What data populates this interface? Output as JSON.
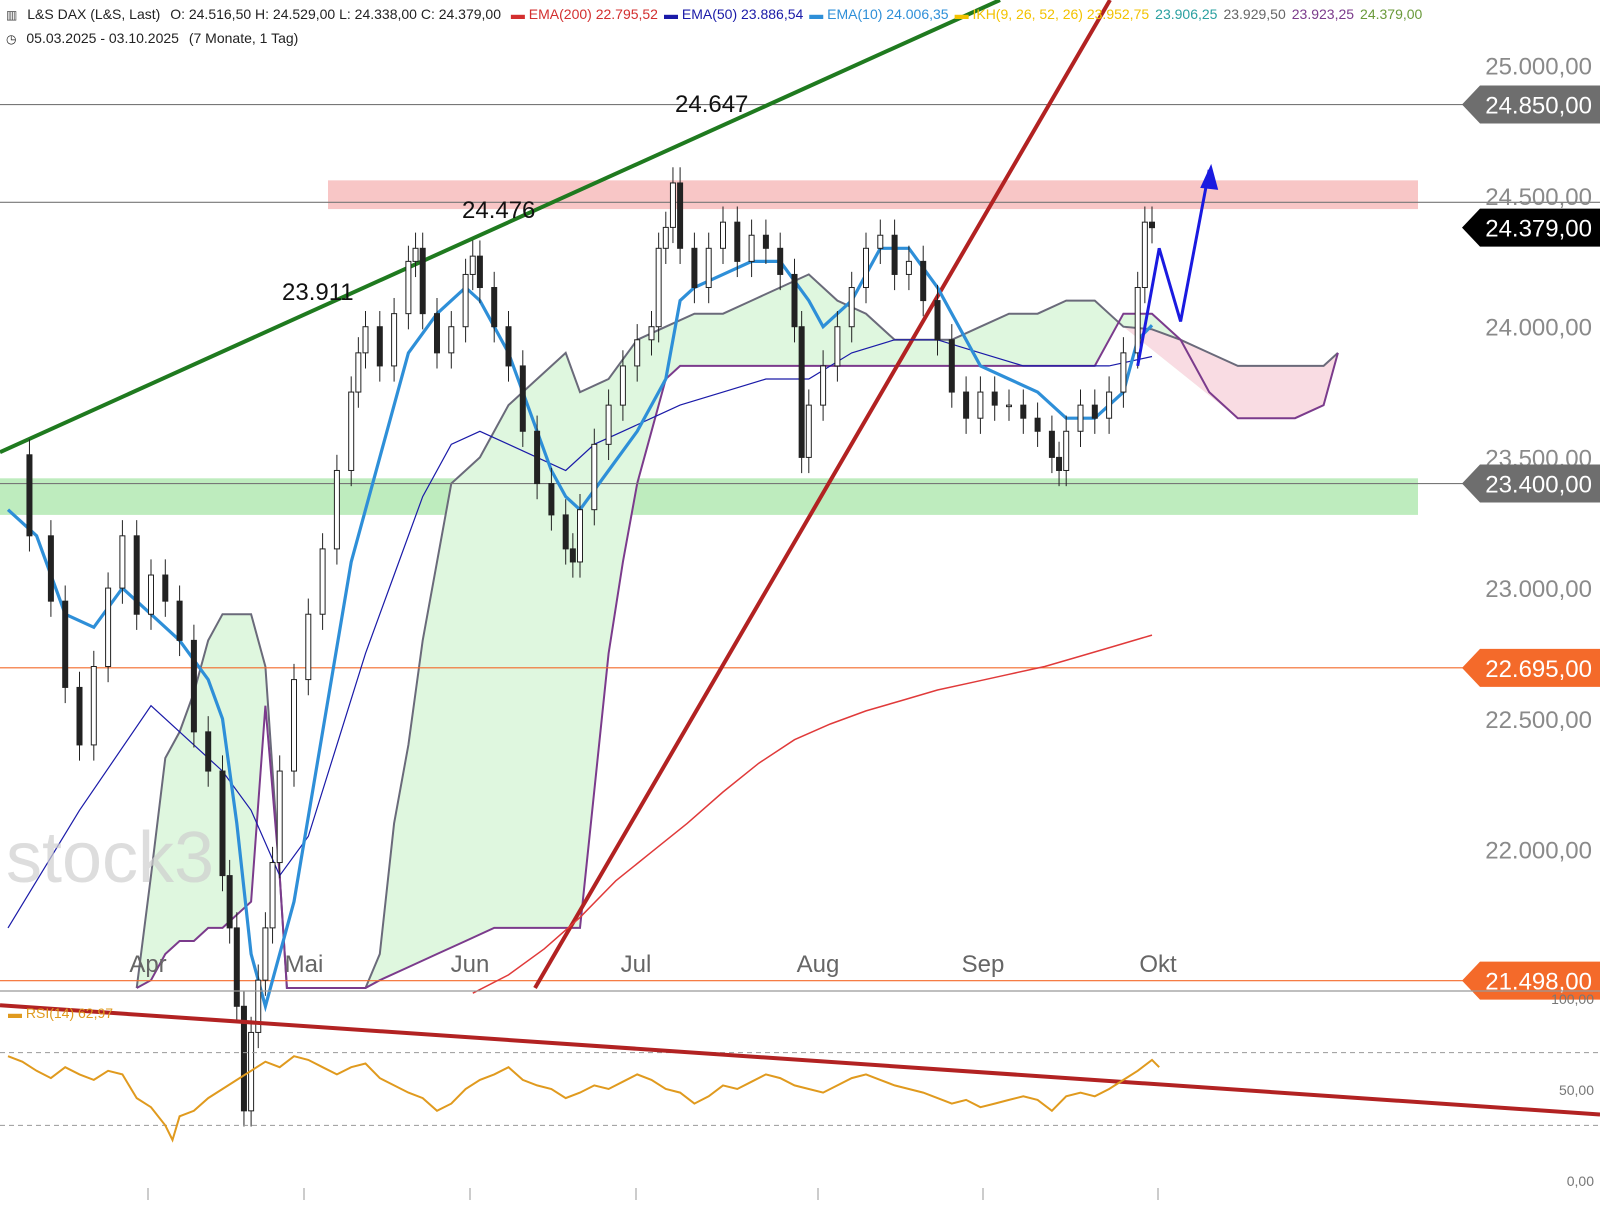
{
  "header": {
    "instrument": "L&S DAX (L&S, Last)",
    "ohlc": "O: 24.516,50  H: 24.529,00  L: 24.338,00  C: 24.379,00",
    "range": "05.03.2025 - 03.10.2025",
    "range_note": "(7 Monate, 1 Tag)",
    "indicators": [
      {
        "label": "EMA(200)",
        "value": "22.795,52",
        "color": "#d32f2f"
      },
      {
        "label": "EMA(50)",
        "value": "23.886,54",
        "color": "#1a1aa8"
      },
      {
        "label": "EMA(10)",
        "value": "24.006,35",
        "color": "#2e8fd8"
      },
      {
        "label": "IKH(9, 26, 52, 26)",
        "value": "23.952,75",
        "color": "#f2c200"
      }
    ],
    "ikh_values": [
      {
        "value": "23.906,25",
        "color": "#2aa0a0"
      },
      {
        "value": "23.929,50",
        "color": "#666666"
      },
      {
        "value": "23.923,25",
        "color": "#7b3b8c"
      },
      {
        "value": "24.379,00",
        "color": "#6a9a3a"
      }
    ]
  },
  "watermark": "stock3",
  "annotations": [
    {
      "text": "24.647"
    },
    {
      "text": "24.476"
    },
    {
      "text": "23.911"
    }
  ],
  "price_axis": {
    "ticks": [
      "25.000,00",
      "24.500,00",
      "24.000,00",
      "23.500,00",
      "23.000,00",
      "22.500,00",
      "22.000,00"
    ],
    "tick_values": [
      25000,
      24500,
      24000,
      23500,
      23000,
      22500,
      22000
    ]
  },
  "price_badges": [
    {
      "text": "24.850,00",
      "value": 24850,
      "bg": "#6e6e6e"
    },
    {
      "text": "24.379,00",
      "value": 24379,
      "bg": "#000000"
    },
    {
      "text": "23.400,00",
      "value": 23400,
      "bg": "#6e6e6e"
    },
    {
      "text": "22.695,00",
      "value": 22695,
      "bg": "#f46a2a"
    },
    {
      "text": "21.498,00",
      "value": 21498,
      "bg": "#f46a2a"
    }
  ],
  "month_labels": [
    "Apr",
    "Mai",
    "Jun",
    "Jul",
    "Aug",
    "Sep",
    "Okt"
  ],
  "rsi": {
    "label": "RSI(14)",
    "value_text": "62,97",
    "current": 62.97,
    "ticks": [
      "100,00",
      "50,00",
      "0,00"
    ],
    "tick_values": [
      100,
      50,
      0
    ],
    "color": "#e09a1e"
  },
  "colors": {
    "support_zone": "#a8e6a8",
    "resistance_zone": "#f5b3b3",
    "cloud_bull": "#dff7df",
    "cloud_bear": "#f9dce3",
    "trend_green": "#1f7a1f",
    "trend_red": "#b22222"
  },
  "chart_data": {
    "type": "candlestick",
    "title": "L&S DAX (L&S, Last)",
    "ylim": [
      21470,
      25250
    ],
    "ohlc_last": {
      "open": 24516.5,
      "high": 24529,
      "low": 24338,
      "close": 24379
    },
    "horizontal_levels": [
      24850,
      24476,
      23400,
      22695,
      21498
    ],
    "resistance_zone": [
      24450,
      24560
    ],
    "support_zone": [
      23280,
      23420
    ],
    "price": [
      [
        0,
        23510
      ],
      [
        3,
        23200
      ],
      [
        6,
        22950
      ],
      [
        8,
        22620
      ],
      [
        10,
        22400
      ],
      [
        12,
        22700
      ],
      [
        14,
        23000
      ],
      [
        16,
        23200
      ],
      [
        18,
        22900
      ],
      [
        20,
        23050
      ],
      [
        22,
        22950
      ],
      [
        24,
        22800
      ],
      [
        26,
        22450
      ],
      [
        28,
        22300
      ],
      [
        30,
        21900
      ],
      [
        31,
        21700
      ],
      [
        32,
        21400
      ],
      [
        33,
        21000
      ],
      [
        34,
        21300
      ],
      [
        35,
        21500
      ],
      [
        36,
        21700
      ],
      [
        37,
        21950
      ],
      [
        38,
        22300
      ],
      [
        40,
        22650
      ],
      [
        42,
        22900
      ],
      [
        44,
        23150
      ],
      [
        46,
        23450
      ],
      [
        48,
        23750
      ],
      [
        49,
        23900
      ],
      [
        50,
        24000
      ],
      [
        52,
        23850
      ],
      [
        54,
        24050
      ],
      [
        56,
        24250
      ],
      [
        57,
        24300
      ],
      [
        58,
        24050
      ],
      [
        60,
        23900
      ],
      [
        62,
        24000
      ],
      [
        64,
        24200
      ],
      [
        65,
        24270
      ],
      [
        66,
        24150
      ],
      [
        68,
        24000
      ],
      [
        70,
        23850
      ],
      [
        72,
        23600
      ],
      [
        74,
        23400
      ],
      [
        76,
        23280
      ],
      [
        78,
        23150
      ],
      [
        79,
        23100
      ],
      [
        80,
        23300
      ],
      [
        82,
        23550
      ],
      [
        84,
        23700
      ],
      [
        86,
        23850
      ],
      [
        88,
        23950
      ],
      [
        90,
        24000
      ],
      [
        91,
        24300
      ],
      [
        92,
        24380
      ],
      [
        93,
        24550
      ],
      [
        94,
        24300
      ],
      [
        96,
        24150
      ],
      [
        98,
        24300
      ],
      [
        100,
        24400
      ],
      [
        102,
        24250
      ],
      [
        104,
        24350
      ],
      [
        106,
        24300
      ],
      [
        108,
        24200
      ],
      [
        110,
        24000
      ],
      [
        111,
        23500
      ],
      [
        112,
        23700
      ],
      [
        114,
        23850
      ],
      [
        116,
        24000
      ],
      [
        118,
        24150
      ],
      [
        120,
        24300
      ],
      [
        122,
        24350
      ],
      [
        124,
        24200
      ],
      [
        126,
        24250
      ],
      [
        128,
        24100
      ],
      [
        130,
        23950
      ],
      [
        132,
        23750
      ],
      [
        134,
        23650
      ],
      [
        136,
        23750
      ],
      [
        138,
        23700
      ],
      [
        140,
        23700
      ],
      [
        142,
        23650
      ],
      [
        144,
        23600
      ],
      [
        146,
        23500
      ],
      [
        147,
        23450
      ],
      [
        148,
        23600
      ],
      [
        150,
        23700
      ],
      [
        152,
        23650
      ],
      [
        154,
        23750
      ],
      [
        156,
        23900
      ],
      [
        158,
        24150
      ],
      [
        159,
        24400
      ],
      [
        160,
        24379
      ]
    ],
    "ema10": [
      [
        0,
        23300
      ],
      [
        4,
        23200
      ],
      [
        8,
        22900
      ],
      [
        12,
        22850
      ],
      [
        16,
        23000
      ],
      [
        20,
        22900
      ],
      [
        24,
        22800
      ],
      [
        28,
        22650
      ],
      [
        30,
        22500
      ],
      [
        32,
        22100
      ],
      [
        34,
        21600
      ],
      [
        36,
        21400
      ],
      [
        40,
        21800
      ],
      [
        44,
        22450
      ],
      [
        48,
        23100
      ],
      [
        52,
        23500
      ],
      [
        56,
        23900
      ],
      [
        60,
        24050
      ],
      [
        62,
        24100
      ],
      [
        64,
        24150
      ],
      [
        66,
        24100
      ],
      [
        68,
        24000
      ],
      [
        70,
        23900
      ],
      [
        72,
        23750
      ],
      [
        74,
        23600
      ],
      [
        76,
        23450
      ],
      [
        78,
        23350
      ],
      [
        80,
        23300
      ],
      [
        84,
        23450
      ],
      [
        88,
        23600
      ],
      [
        92,
        23800
      ],
      [
        94,
        24100
      ],
      [
        96,
        24150
      ],
      [
        100,
        24200
      ],
      [
        104,
        24250
      ],
      [
        108,
        24250
      ],
      [
        112,
        24100
      ],
      [
        114,
        24000
      ],
      [
        118,
        24100
      ],
      [
        122,
        24300
      ],
      [
        126,
        24300
      ],
      [
        130,
        24150
      ],
      [
        132,
        24050
      ],
      [
        134,
        23950
      ],
      [
        136,
        23850
      ],
      [
        140,
        23800
      ],
      [
        144,
        23750
      ],
      [
        148,
        23650
      ],
      [
        152,
        23650
      ],
      [
        156,
        23750
      ],
      [
        158,
        23950
      ],
      [
        160,
        24006
      ]
    ],
    "ema50": [
      [
        0,
        21700
      ],
      [
        10,
        22150
      ],
      [
        20,
        22550
      ],
      [
        30,
        22300
      ],
      [
        34,
        22150
      ],
      [
        38,
        21900
      ],
      [
        42,
        22050
      ],
      [
        46,
        22400
      ],
      [
        50,
        22750
      ],
      [
        54,
        23050
      ],
      [
        58,
        23350
      ],
      [
        62,
        23550
      ],
      [
        66,
        23600
      ],
      [
        70,
        23550
      ],
      [
        74,
        23500
      ],
      [
        78,
        23450
      ],
      [
        82,
        23550
      ],
      [
        86,
        23600
      ],
      [
        90,
        23650
      ],
      [
        94,
        23700
      ],
      [
        100,
        23750
      ],
      [
        106,
        23800
      ],
      [
        112,
        23800
      ],
      [
        118,
        23900
      ],
      [
        124,
        23950
      ],
      [
        130,
        23950
      ],
      [
        136,
        23900
      ],
      [
        142,
        23850
      ],
      [
        148,
        23850
      ],
      [
        154,
        23850
      ],
      [
        160,
        23886
      ]
    ],
    "ema200": [
      [
        65,
        21450
      ],
      [
        70,
        21520
      ],
      [
        75,
        21620
      ],
      [
        80,
        21740
      ],
      [
        85,
        21880
      ],
      [
        90,
        21990
      ],
      [
        95,
        22100
      ],
      [
        100,
        22220
      ],
      [
        105,
        22330
      ],
      [
        110,
        22420
      ],
      [
        115,
        22480
      ],
      [
        120,
        22530
      ],
      [
        125,
        22570
      ],
      [
        130,
        22610
      ],
      [
        135,
        22640
      ],
      [
        140,
        22670
      ],
      [
        145,
        22700
      ],
      [
        150,
        22740
      ],
      [
        155,
        22780
      ],
      [
        160,
        22820
      ]
    ],
    "cloud_upper": [
      [
        18,
        21470
      ],
      [
        20,
        21900
      ],
      [
        22,
        22350
      ],
      [
        24,
        22450
      ],
      [
        26,
        22600
      ],
      [
        28,
        22800
      ],
      [
        30,
        22900
      ],
      [
        34,
        22900
      ],
      [
        36,
        22700
      ],
      [
        38,
        21900
      ],
      [
        39,
        21470
      ],
      [
        50,
        21470
      ],
      [
        52,
        21600
      ],
      [
        54,
        22100
      ],
      [
        56,
        22400
      ],
      [
        58,
        22800
      ],
      [
        62,
        23400
      ],
      [
        66,
        23500
      ],
      [
        70,
        23700
      ],
      [
        74,
        23800
      ],
      [
        78,
        23900
      ],
      [
        80,
        23750
      ],
      [
        84,
        23800
      ],
      [
        88,
        23950
      ],
      [
        92,
        24000
      ],
      [
        96,
        24050
      ],
      [
        100,
        24050
      ],
      [
        104,
        24100
      ],
      [
        108,
        24150
      ],
      [
        112,
        24200
      ],
      [
        116,
        24100
      ],
      [
        120,
        24050
      ],
      [
        124,
        23950
      ],
      [
        128,
        23950
      ],
      [
        132,
        23950
      ],
      [
        136,
        24000
      ],
      [
        140,
        24050
      ],
      [
        144,
        24050
      ],
      [
        148,
        24100
      ],
      [
        152,
        24100
      ],
      [
        154,
        24050
      ],
      [
        156,
        24000
      ],
      [
        160,
        23990
      ],
      [
        164,
        23950
      ],
      [
        168,
        23900
      ],
      [
        172,
        23850
      ],
      [
        176,
        23850
      ],
      [
        180,
        23850
      ],
      [
        184,
        23850
      ],
      [
        186,
        23900
      ]
    ],
    "cloud_lower": [
      [
        18,
        21470
      ],
      [
        20,
        21500
      ],
      [
        22,
        21600
      ],
      [
        24,
        21650
      ],
      [
        26,
        21650
      ],
      [
        28,
        21700
      ],
      [
        30,
        21700
      ],
      [
        34,
        21800
      ],
      [
        36,
        22550
      ],
      [
        38,
        21900
      ],
      [
        39,
        21470
      ],
      [
        50,
        21470
      ],
      [
        52,
        21500
      ],
      [
        56,
        21550
      ],
      [
        60,
        21600
      ],
      [
        64,
        21650
      ],
      [
        68,
        21700
      ],
      [
        72,
        21700
      ],
      [
        76,
        21700
      ],
      [
        80,
        21700
      ],
      [
        84,
        22750
      ],
      [
        86,
        23100
      ],
      [
        88,
        23400
      ],
      [
        90,
        23600
      ],
      [
        92,
        23800
      ],
      [
        94,
        23850
      ],
      [
        100,
        23850
      ],
      [
        108,
        23850
      ],
      [
        112,
        23850
      ],
      [
        118,
        23850
      ],
      [
        124,
        23850
      ],
      [
        128,
        23850
      ],
      [
        132,
        23850
      ],
      [
        136,
        23850
      ],
      [
        140,
        23850
      ],
      [
        148,
        23850
      ],
      [
        152,
        23850
      ],
      [
        156,
        24050
      ],
      [
        160,
        24050
      ],
      [
        164,
        23950
      ],
      [
        168,
        23750
      ],
      [
        172,
        23650
      ],
      [
        176,
        23650
      ],
      [
        180,
        23650
      ],
      [
        184,
        23700
      ],
      [
        186,
        23900
      ]
    ],
    "forecast_path": [
      [
        158,
        23850
      ],
      [
        161,
        24300
      ],
      [
        164,
        24020
      ],
      [
        168,
        24600
      ]
    ],
    "rsi_series": [
      [
        0,
        68
      ],
      [
        2,
        65
      ],
      [
        4,
        60
      ],
      [
        6,
        56
      ],
      [
        8,
        62
      ],
      [
        10,
        58
      ],
      [
        12,
        55
      ],
      [
        14,
        60
      ],
      [
        16,
        58
      ],
      [
        18,
        45
      ],
      [
        20,
        40
      ],
      [
        22,
        30
      ],
      [
        23,
        22
      ],
      [
        24,
        35
      ],
      [
        26,
        38
      ],
      [
        28,
        45
      ],
      [
        30,
        50
      ],
      [
        32,
        55
      ],
      [
        34,
        60
      ],
      [
        36,
        65
      ],
      [
        38,
        62
      ],
      [
        40,
        68
      ],
      [
        42,
        66
      ],
      [
        44,
        62
      ],
      [
        46,
        58
      ],
      [
        48,
        62
      ],
      [
        50,
        64
      ],
      [
        52,
        56
      ],
      [
        54,
        52
      ],
      [
        56,
        48
      ],
      [
        58,
        45
      ],
      [
        60,
        38
      ],
      [
        62,
        42
      ],
      [
        64,
        50
      ],
      [
        66,
        55
      ],
      [
        68,
        58
      ],
      [
        70,
        62
      ],
      [
        72,
        55
      ],
      [
        74,
        52
      ],
      [
        76,
        50
      ],
      [
        78,
        45
      ],
      [
        80,
        48
      ],
      [
        82,
        52
      ],
      [
        84,
        50
      ],
      [
        86,
        54
      ],
      [
        88,
        58
      ],
      [
        90,
        55
      ],
      [
        92,
        50
      ],
      [
        94,
        48
      ],
      [
        96,
        42
      ],
      [
        98,
        46
      ],
      [
        100,
        52
      ],
      [
        102,
        50
      ],
      [
        104,
        54
      ],
      [
        106,
        58
      ],
      [
        108,
        56
      ],
      [
        110,
        52
      ],
      [
        112,
        50
      ],
      [
        114,
        48
      ],
      [
        116,
        52
      ],
      [
        118,
        56
      ],
      [
        120,
        58
      ],
      [
        122,
        55
      ],
      [
        124,
        52
      ],
      [
        126,
        50
      ],
      [
        128,
        48
      ],
      [
        130,
        45
      ],
      [
        132,
        42
      ],
      [
        134,
        44
      ],
      [
        136,
        40
      ],
      [
        138,
        42
      ],
      [
        140,
        44
      ],
      [
        142,
        46
      ],
      [
        144,
        44
      ],
      [
        146,
        38
      ],
      [
        148,
        46
      ],
      [
        150,
        48
      ],
      [
        152,
        46
      ],
      [
        154,
        50
      ],
      [
        156,
        55
      ],
      [
        158,
        60
      ],
      [
        160,
        66
      ],
      [
        161,
        62
      ]
    ]
  }
}
